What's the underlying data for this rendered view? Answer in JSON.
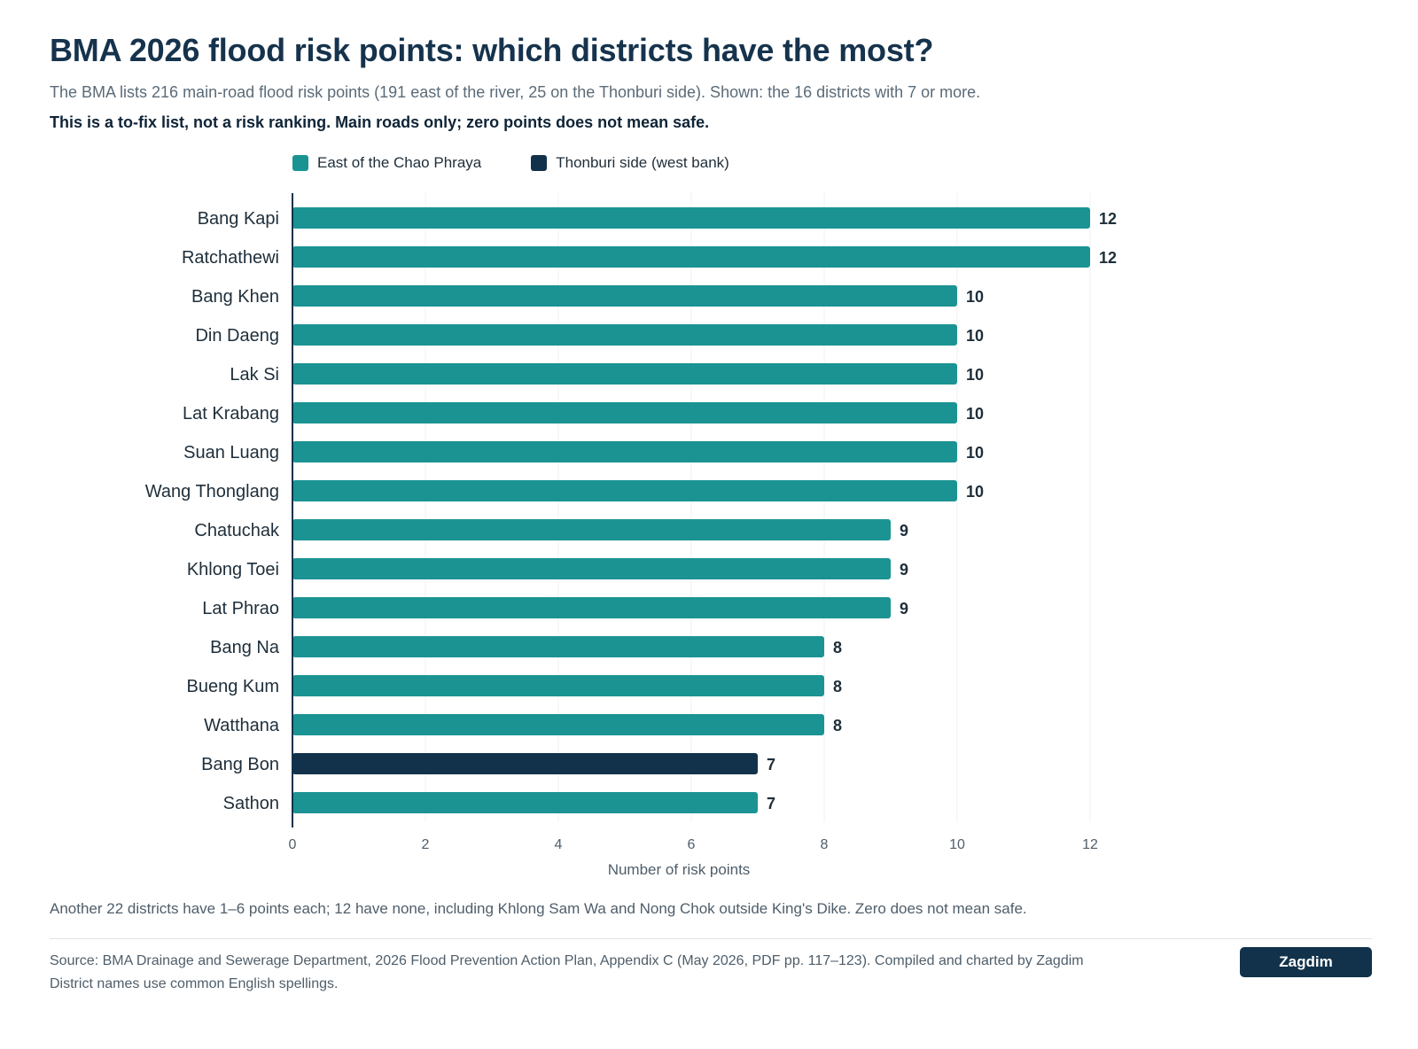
{
  "title": "BMA 2026 flood risk points: which districts have the most?",
  "subtitle": "The BMA lists 216 main-road flood risk points (191 east of the river, 25 on the Thonburi side). Shown: the 16 districts with 7 or more.",
  "emphasis": "This is a to-fix list, not a risk ranking. Main roads only; zero points does not mean safe.",
  "footnote": "Another 22 districts have 1–6 points each; 12 have none, including Khlong Sam Wa and Nong Chok outside King's Dike. Zero does not mean safe.",
  "source_line1": "Source: BMA Drainage and Sewerage Department, 2026 Flood Prevention Action Plan, Appendix C (May 2026, PDF pp. 117–123). Compiled and charted by Zagdim",
  "source_line2": "District names use common English spellings.",
  "brand": "Zagdim",
  "colors": {
    "east": "#1b9393",
    "west": "#12324b"
  },
  "chart_data": {
    "type": "bar",
    "orientation": "horizontal",
    "xlabel": "Number of risk points",
    "xlim": [
      0,
      12
    ],
    "xticks": [
      0,
      2,
      4,
      6,
      8,
      10,
      12
    ],
    "grid": true,
    "legend": [
      {
        "key": "east",
        "label": "East of the Chao Phraya"
      },
      {
        "key": "west",
        "label": "Thonburi side (west bank)"
      }
    ],
    "categories": [
      "Bang Kapi",
      "Ratchathewi",
      "Bang Khen",
      "Din Daeng",
      "Lak Si",
      "Lat Krabang",
      "Suan Luang",
      "Wang Thonglang",
      "Chatuchak",
      "Khlong Toei",
      "Lat Phrao",
      "Bang Na",
      "Bueng Kum",
      "Watthana",
      "Bang Bon",
      "Sathon"
    ],
    "values": [
      12,
      12,
      10,
      10,
      10,
      10,
      10,
      10,
      9,
      9,
      9,
      8,
      8,
      8,
      7,
      7
    ],
    "group": [
      "east",
      "east",
      "east",
      "east",
      "east",
      "east",
      "east",
      "east",
      "east",
      "east",
      "east",
      "east",
      "east",
      "east",
      "west",
      "east"
    ]
  }
}
